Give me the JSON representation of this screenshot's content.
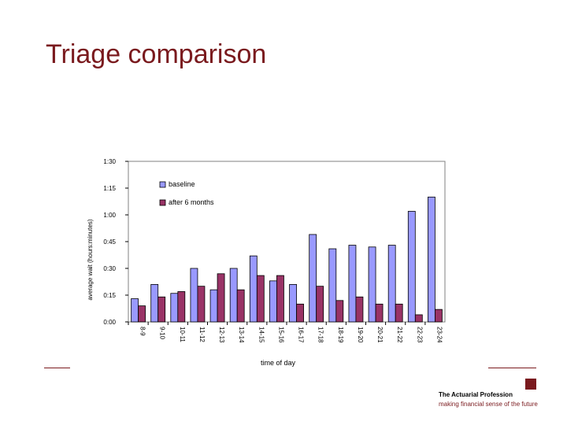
{
  "slide": {
    "title": "Triage comparison",
    "logo_name": "The Actuarial Profession",
    "logo_tagline": "making financial sense of the future"
  },
  "colors": {
    "title": "#7a1a1e",
    "baseline": "#9999ff",
    "after": "#993366",
    "rule": "#7a1a1e"
  },
  "chart_data": {
    "type": "bar",
    "title": "",
    "xlabel": "time of day",
    "ylabel": "average wait (hours:minutes)",
    "ylim": [
      0,
      90
    ],
    "yticks": [
      0,
      15,
      30,
      45,
      60,
      75,
      90
    ],
    "ytick_labels": [
      "0:00",
      "0:15",
      "0:30",
      "0:45",
      "1:00",
      "1:15",
      "1:30"
    ],
    "grid": false,
    "legend_position": "top-left",
    "categories": [
      "8-9",
      "9-10",
      "10-11",
      "11-12",
      "12-13",
      "13-14",
      "14-15",
      "15-16",
      "16-17",
      "17-18",
      "18-19",
      "19-20",
      "20-21",
      "21-22",
      "22-23",
      "23-24"
    ],
    "series": [
      {
        "name": "baseline",
        "color": "#9999ff",
        "values": [
          13,
          21,
          16,
          30,
          18,
          30,
          37,
          23,
          21,
          49,
          41,
          43,
          42,
          43,
          62,
          70
        ]
      },
      {
        "name": "after 6 months",
        "color": "#993366",
        "values": [
          9,
          14,
          17,
          20,
          27,
          18,
          26,
          26,
          10,
          20,
          12,
          14,
          10,
          10,
          4,
          7
        ]
      }
    ]
  }
}
